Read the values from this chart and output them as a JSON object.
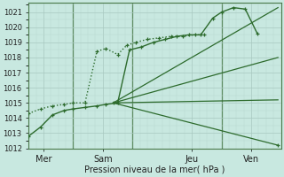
{
  "bg_color": "#c8e8e0",
  "grid_major_color": "#a8c8c0",
  "grid_minor_color": "#b8d8d0",
  "line_color": "#2d6b2d",
  "vline_color": "#4a7a4a",
  "xlabel": "Pression niveau de la mer( hPa )",
  "xlabel_fontsize": 7,
  "ytick_fontsize": 6,
  "xtick_fontsize": 7,
  "ylim": [
    1012,
    1021.6
  ],
  "xlim": [
    0,
    8.5
  ],
  "yticks": [
    1012,
    1013,
    1014,
    1015,
    1016,
    1017,
    1018,
    1019,
    1020,
    1021
  ],
  "xtick_positions": [
    0.5,
    2.5,
    5.5,
    7.5
  ],
  "xtick_labels": [
    "Mer",
    "Sam",
    "Jeu",
    "Ven"
  ],
  "vlines": [
    1.5,
    3.5,
    6.5
  ],
  "curve1_x": [
    0.0,
    0.4,
    0.8,
    1.2,
    1.5,
    1.9,
    2.3,
    2.6,
    3.0,
    3.4,
    3.8,
    4.2,
    4.6,
    5.0,
    5.4,
    5.8,
    6.2,
    6.5,
    6.9,
    7.3,
    7.7
  ],
  "curve1_y": [
    1012.8,
    1013.4,
    1014.2,
    1014.5,
    1014.6,
    1014.7,
    1014.8,
    1014.9,
    1015.0,
    1018.5,
    1018.7,
    1019.0,
    1019.2,
    1019.4,
    1019.5,
    1019.5,
    1020.6,
    1021.0,
    1021.3,
    1021.2,
    1019.6
  ],
  "curve1_style": "-",
  "curve1_marker": "+",
  "curve2_x": [
    0.0,
    0.4,
    0.8,
    1.2,
    1.5,
    1.9,
    2.3,
    2.6,
    3.0,
    3.3,
    3.6,
    4.0,
    4.4,
    4.8,
    5.2,
    5.6,
    5.9
  ],
  "curve2_y": [
    1014.3,
    1014.6,
    1014.8,
    1014.9,
    1015.0,
    1015.0,
    1018.4,
    1018.6,
    1018.2,
    1018.8,
    1019.0,
    1019.2,
    1019.3,
    1019.4,
    1019.4,
    1019.5,
    1019.5
  ],
  "curve2_style": ":",
  "curve2_marker": "+",
  "line3_x": [
    2.85,
    8.4
  ],
  "line3_y": [
    1015.0,
    1021.3
  ],
  "line4_x": [
    2.85,
    8.4
  ],
  "line4_y": [
    1015.0,
    1018.0
  ],
  "line5_x": [
    2.85,
    8.4
  ],
  "line5_y": [
    1015.0,
    1015.2
  ],
  "line6_x": [
    2.85,
    8.4
  ],
  "line6_y": [
    1015.0,
    1012.2
  ],
  "line6_marker": "+"
}
